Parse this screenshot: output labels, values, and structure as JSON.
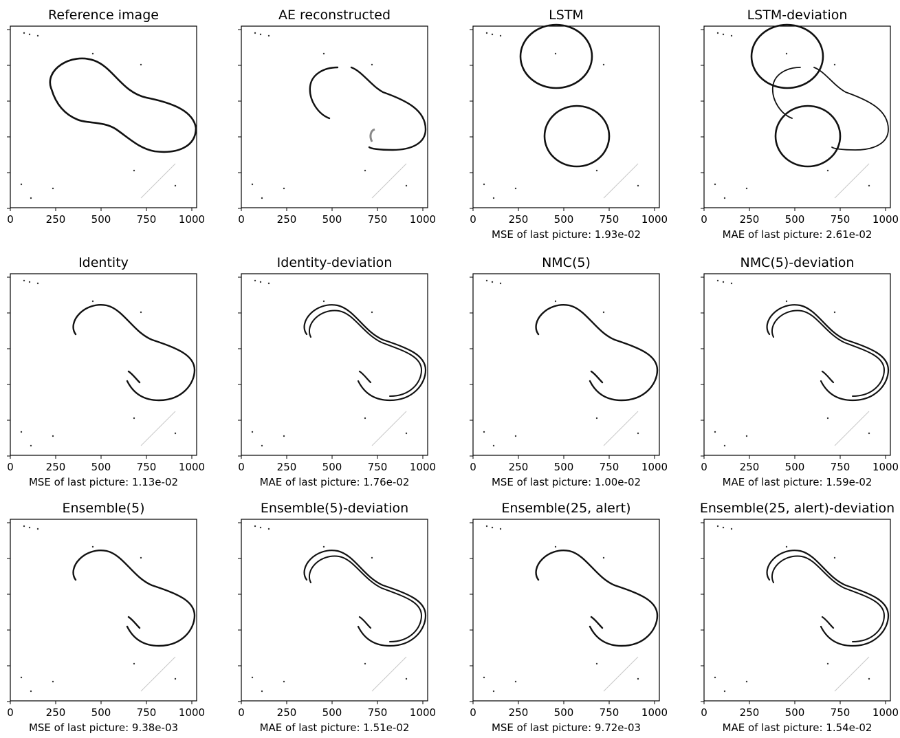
{
  "figure": {
    "x_tick_labels": [
      "0",
      "250",
      "500",
      "750",
      "1000"
    ],
    "panels": [
      {
        "title": "Reference image",
        "caption": "",
        "overlay": "ref"
      },
      {
        "title": "AE reconstructed",
        "caption": "",
        "overlay": "ae"
      },
      {
        "title": "LSTM",
        "caption": "MSE of last picture: 1.93e-02",
        "overlay": "lstm"
      },
      {
        "title": "LSTM-deviation",
        "caption": "MAE of last picture: 2.61e-02",
        "overlay": "lstm-dev"
      },
      {
        "title": "Identity",
        "caption": "MSE of last picture: 1.13e-02",
        "overlay": "pred"
      },
      {
        "title": "Identity-deviation",
        "caption": "MAE of last picture: 1.76e-02",
        "overlay": "pred-dev"
      },
      {
        "title": "NMC(5)",
        "caption": "MSE of last picture: 1.00e-02",
        "overlay": "pred"
      },
      {
        "title": "NMC(5)-deviation",
        "caption": "MAE of last picture: 1.59e-02",
        "overlay": "pred-dev"
      },
      {
        "title": "Ensemble(5)",
        "caption": "MSE of last picture: 9.38e-03",
        "overlay": "pred"
      },
      {
        "title": "Ensemble(5)-deviation",
        "caption": "MAE of last picture: 1.51e-02",
        "overlay": "pred-dev"
      },
      {
        "title": "Ensemble(25, alert)",
        "caption": "MSE of last picture: 9.72e-03",
        "overlay": "pred"
      },
      {
        "title": "Ensemble(25, alert)-deviation",
        "caption": "MAE of last picture: 1.54e-02",
        "overlay": "pred-dev"
      }
    ]
  }
}
